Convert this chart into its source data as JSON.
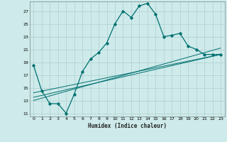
{
  "xlabel": "Humidex (Indice chaleur)",
  "bg_color": "#ceeaea",
  "grid_color": "#b0d0d0",
  "line_color": "#007070",
  "xlim": [
    -0.5,
    23.5
  ],
  "ylim": [
    10.5,
    28.5
  ],
  "xticks": [
    0,
    1,
    2,
    3,
    4,
    5,
    6,
    7,
    8,
    9,
    10,
    11,
    12,
    13,
    14,
    15,
    16,
    17,
    18,
    19,
    20,
    21,
    22,
    23
  ],
  "yticks": [
    11,
    13,
    15,
    17,
    19,
    21,
    23,
    25,
    27
  ],
  "curve1_x": [
    0,
    1,
    2,
    3,
    4,
    5,
    6,
    7,
    8,
    9,
    10,
    11,
    12,
    13,
    14,
    15,
    16,
    17,
    18,
    19,
    20,
    21,
    22,
    23
  ],
  "curve1_y": [
    18.5,
    14.5,
    12.5,
    12.5,
    11.0,
    14.0,
    17.5,
    19.5,
    20.5,
    22.0,
    25.0,
    27.0,
    26.0,
    27.8,
    28.2,
    26.5,
    23.0,
    23.2,
    23.5,
    21.5,
    21.0,
    20.2,
    20.2,
    20.2
  ],
  "line1_x": [
    0,
    23
  ],
  "line1_y": [
    13.0,
    21.2
  ],
  "line2_x": [
    0,
    23
  ],
  "line2_y": [
    13.5,
    20.2
  ],
  "line3_x": [
    0,
    23
  ],
  "line3_y": [
    14.2,
    20.2
  ]
}
